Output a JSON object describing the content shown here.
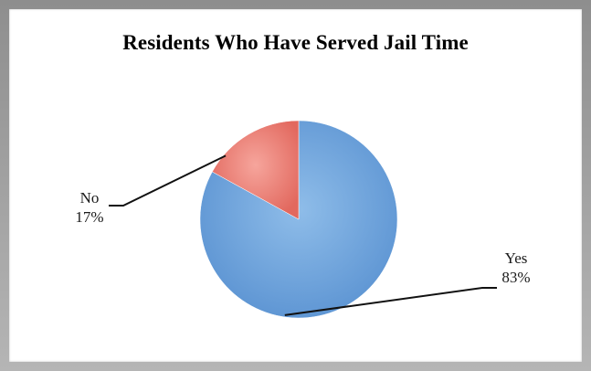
{
  "chart_data": {
    "type": "pie",
    "title": "Residents Who Have Served Jail Time",
    "slices": [
      {
        "label": "Yes",
        "value": 83,
        "display": "83%",
        "color": "#6fa3dc"
      },
      {
        "label": "No",
        "value": 17,
        "display": "17%",
        "color": "#e8766c"
      }
    ],
    "start": "top, clockwise"
  }
}
